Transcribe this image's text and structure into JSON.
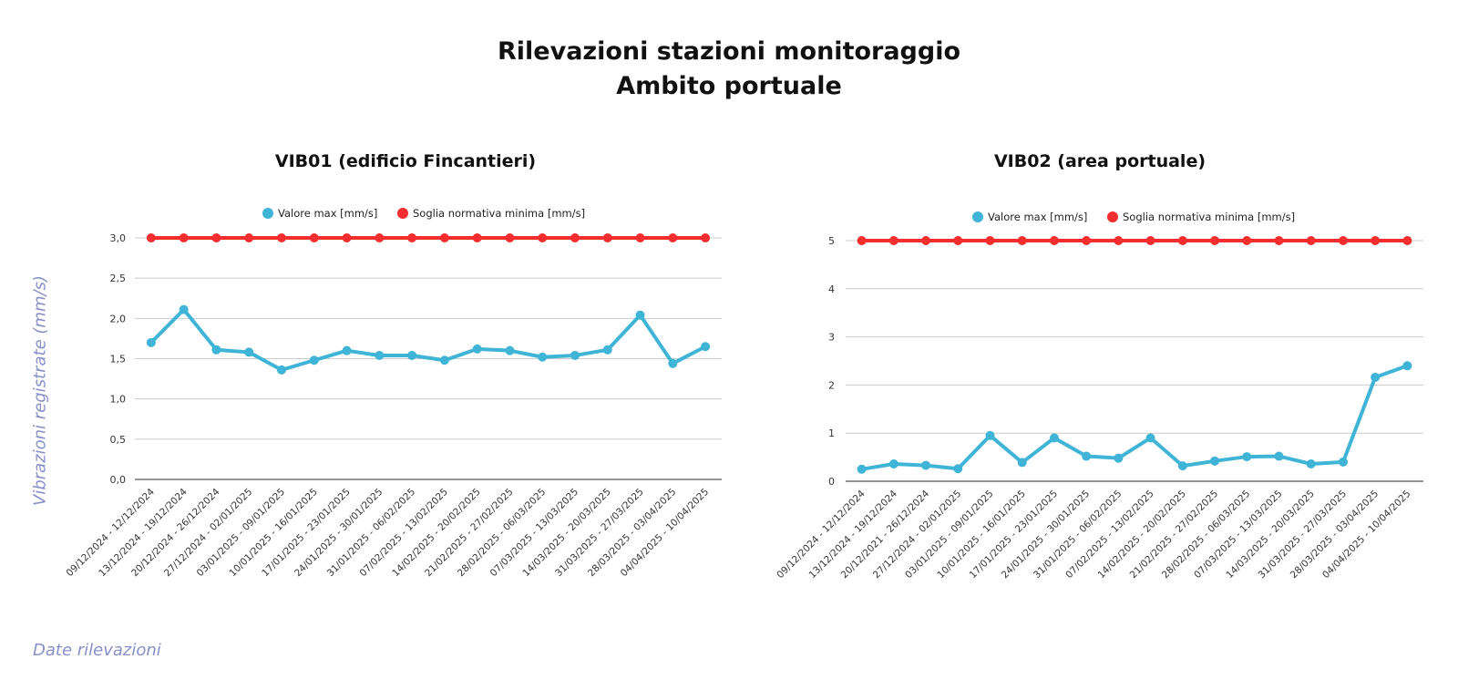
{
  "title_line1": "Rilevazioni stazioni monitoraggio",
  "title_line2": "Ambito portuale",
  "y_axis_title": "Vibrazioni registrate (mm/s)",
  "x_axis_title": "Date rilevazioni",
  "colors": {
    "valore": "#3fb4d6",
    "soglia": "#f42e2e",
    "grid": "#cccccc",
    "axis_titles": "#8791c8"
  },
  "chart_data": [
    {
      "type": "line",
      "title": "VIB01 (edificio Fincantieri)",
      "categories": [
        "09/12/2024 - 12/12/2024",
        "13/12/2024 - 19/12/2024",
        "20/12/2024 - 26/12/2024",
        "27/12/2024 - 02/01/2025",
        "03/01/2025 - 09/01/2025",
        "10/01/2025 - 16/01/2025",
        "17/01/2025 - 23/01/2025",
        "24/01/2025 - 30/01/2025",
        "31/01/2025 - 06/02/2025",
        "07/02/2025 - 13/02/2025",
        "14/02/2025 - 20/02/2025",
        "21/02/2025 - 27/02/2025",
        "28/02/2025 - 06/03/2025",
        "07/03/2025 - 13/03/2025",
        "14/03/2025 - 20/03/2025",
        "31/03/2025 - 27/03/2025",
        "28/03/2025 - 03/04/2025",
        "04/04/2025 - 10/04/2025"
      ],
      "series": [
        {
          "name": "Valore max [mm/s]",
          "values": [
            1.7,
            2.11,
            1.61,
            1.58,
            1.36,
            1.48,
            1.6,
            1.54,
            1.54,
            1.48,
            1.62,
            1.6,
            1.52,
            1.54,
            1.61,
            2.04,
            1.44,
            1.65
          ]
        },
        {
          "name": "Soglia normativa minima [mm/s]",
          "values": [
            3,
            3,
            3,
            3,
            3,
            3,
            3,
            3,
            3,
            3,
            3,
            3,
            3,
            3,
            3,
            3,
            3,
            3
          ]
        }
      ],
      "ylim": [
        0,
        3
      ],
      "yticks": [
        "0,0",
        "0,5",
        "1,0",
        "1,5",
        "2,0",
        "2,5",
        "3,0"
      ],
      "grid": true,
      "legend_position": "top-center"
    },
    {
      "type": "line",
      "title": "VIB02 (area portuale)",
      "categories": [
        "09/12/2024 - 12/12/2024",
        "13/12/2024 - 19/12/2024",
        "20/12/2021 - 26/12/2024",
        "27/12/2024 - 02/01/2025",
        "03/01/2025 - 09/01/2025",
        "10/01/2025 - 16/01/2025",
        "17/01/2025 - 23/01/2025",
        "24/01/2025 - 30/01/2025",
        "31/01/2025 - 06/02/2025",
        "07/02/2025 - 13/02/2025",
        "14/02/2025 - 20/02/2025",
        "21/02/2025 - 27/02/2025",
        "28/02/2025 - 06/03/2025",
        "07/03/2025 - 13/03/2025",
        "14/03/2025 - 20/03/2025",
        "31/03/2025 - 27/03/2025",
        "28/03/2025 - 03/04/2025",
        "04/04/2025 - 10/04/2025"
      ],
      "series": [
        {
          "name": "Valore max [mm/s]",
          "values": [
            0.25,
            0.36,
            0.33,
            0.26,
            0.95,
            0.39,
            0.9,
            0.52,
            0.48,
            0.9,
            0.32,
            0.42,
            0.51,
            0.52,
            0.36,
            0.4,
            2.16,
            2.4
          ]
        },
        {
          "name": "Soglia normativa minima [mm/s]",
          "values": [
            5,
            5,
            5,
            5,
            5,
            5,
            5,
            5,
            5,
            5,
            5,
            5,
            5,
            5,
            5,
            5,
            5,
            5
          ]
        }
      ],
      "ylim": [
        0,
        5
      ],
      "yticks": [
        "0",
        "1",
        "2",
        "3",
        "4",
        "5"
      ],
      "grid": true,
      "legend_position": "top-center"
    }
  ]
}
